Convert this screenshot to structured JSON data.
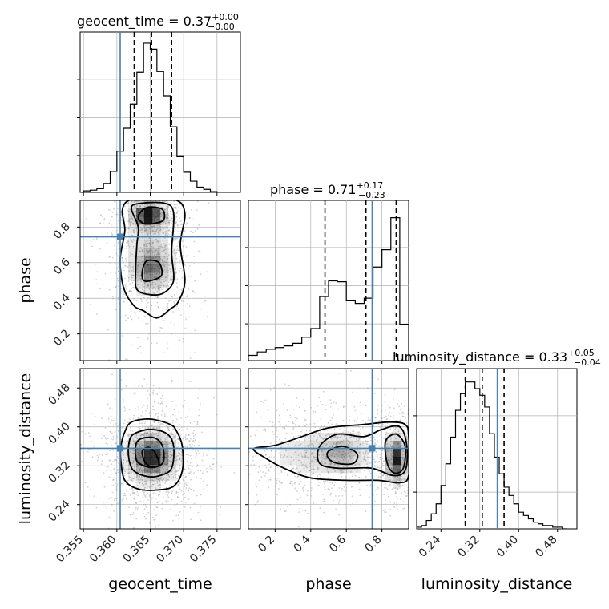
{
  "chart_data": {
    "type": "corner",
    "parameters": [
      "geocent_time",
      "phase",
      "luminosity_distance"
    ],
    "colors": {
      "truth": "#4682b4",
      "hist": "#000000",
      "grid": "#b0b0b0",
      "density": "#000000"
    },
    "truths": {
      "geocent_time": 0.3605,
      "phase": 0.745,
      "luminosity_distance": 0.356
    },
    "ranges": {
      "geocent_time": [
        0.3545,
        0.3785
      ],
      "phase": [
        0.05,
        0.95
      ],
      "luminosity_distance": [
        0.19,
        0.52
      ]
    },
    "ticks": {
      "geocent_time": {
        "values": [
          0.355,
          0.36,
          0.365,
          0.37,
          0.375
        ],
        "labels": [
          "0.355",
          "0.360",
          "0.365",
          "0.370",
          "0.375"
        ]
      },
      "phase": {
        "values": [
          0.2,
          0.4,
          0.6,
          0.8
        ],
        "labels": [
          "0.2",
          "0.4",
          "0.6",
          "0.8"
        ]
      },
      "luminosity_distance": {
        "values": [
          0.24,
          0.32,
          0.4,
          0.48
        ],
        "labels": [
          "0.24",
          "0.32",
          "0.40",
          "0.48"
        ]
      }
    },
    "axis_labels": {
      "geocent_time": "geocent_time",
      "phase": "phase",
      "luminosity_distance": "luminosity_distance"
    },
    "titles": {
      "geocent_time": {
        "prefix": "geocent_time = 0.37",
        "plus": "+0.00",
        "minus": "−0.00"
      },
      "phase": {
        "prefix": "phase = 0.71",
        "plus": "+0.17",
        "minus": "−0.23"
      },
      "luminosity_distance": {
        "prefix": "luminosity_distance = 0.33",
        "plus": "+0.05",
        "minus": "−0.04"
      }
    },
    "quantiles": {
      "geocent_time": [
        0.3626,
        0.3652,
        0.3682
      ],
      "phase": [
        0.48,
        0.71,
        0.88
      ],
      "luminosity_distance": [
        0.29,
        0.325,
        0.37
      ]
    },
    "histograms": {
      "geocent_time": {
        "edges": [
          0.355,
          0.356,
          0.357,
          0.358,
          0.359,
          0.36,
          0.361,
          0.362,
          0.363,
          0.364,
          0.365,
          0.366,
          0.367,
          0.368,
          0.369,
          0.37,
          0.371,
          0.372,
          0.373,
          0.374,
          0.375
        ],
        "counts": [
          2,
          3,
          5,
          12,
          28,
          55,
          86,
          118,
          161,
          200,
          192,
          162,
          129,
          88,
          48,
          27,
          15,
          7,
          4,
          1
        ],
        "ymax": 215
      },
      "phase": {
        "edges": [
          0.05,
          0.1,
          0.15,
          0.2,
          0.25,
          0.3,
          0.35,
          0.4,
          0.45,
          0.5,
          0.55,
          0.6,
          0.65,
          0.7,
          0.75,
          0.8,
          0.85,
          0.9,
          0.95
        ],
        "counts": [
          6,
          10,
          13,
          15,
          17,
          20,
          27,
          37,
          74,
          92,
          91,
          69,
          66,
          72,
          108,
          128,
          165,
          42
        ],
        "ymax": 185
      },
      "luminosity_distance": {
        "edges": [
          0.19,
          0.2,
          0.21,
          0.22,
          0.23,
          0.24,
          0.25,
          0.26,
          0.27,
          0.28,
          0.29,
          0.3,
          0.31,
          0.32,
          0.33,
          0.34,
          0.35,
          0.36,
          0.37,
          0.38,
          0.39,
          0.4,
          0.41,
          0.42,
          0.43,
          0.44,
          0.45,
          0.46,
          0.47,
          0.48,
          0.49,
          0.5
        ],
        "counts": [
          1,
          2,
          5,
          9,
          15,
          26,
          39,
          55,
          71,
          81,
          88,
          88,
          84,
          80,
          73,
          57,
          43,
          33,
          25,
          20,
          15,
          10,
          8,
          6,
          4,
          3,
          2,
          2,
          1,
          1,
          0
        ],
        "ymax": 96
      }
    },
    "contours": {
      "phase_vs_geocent_time": [
        [
          [
            0.3608,
            0.89
          ],
          [
            0.3618,
            0.95
          ],
          [
            0.365,
            0.96
          ],
          [
            0.369,
            0.95
          ],
          [
            0.3702,
            0.87
          ],
          [
            0.3695,
            0.7
          ],
          [
            0.3702,
            0.5
          ],
          [
            0.3692,
            0.38
          ],
          [
            0.368,
            0.34
          ],
          [
            0.366,
            0.29
          ],
          [
            0.364,
            0.33
          ],
          [
            0.3625,
            0.36
          ],
          [
            0.361,
            0.46
          ],
          [
            0.3605,
            0.62
          ],
          [
            0.3612,
            0.78
          ]
        ],
        [
          [
            0.3622,
            0.9
          ],
          [
            0.363,
            0.93
          ],
          [
            0.367,
            0.935
          ],
          [
            0.3685,
            0.88
          ],
          [
            0.3682,
            0.66
          ],
          [
            0.3685,
            0.5
          ],
          [
            0.367,
            0.43
          ],
          [
            0.365,
            0.42
          ],
          [
            0.363,
            0.45
          ],
          [
            0.3628,
            0.55
          ],
          [
            0.363,
            0.7
          ],
          [
            0.3632,
            0.8
          ]
        ],
        [
          [
            0.3632,
            0.86
          ],
          [
            0.3645,
            0.91
          ],
          [
            0.3668,
            0.9
          ],
          [
            0.367,
            0.84
          ],
          [
            0.3655,
            0.82
          ],
          [
            0.364,
            0.82
          ]
        ],
        [
          [
            0.3638,
            0.55
          ],
          [
            0.3645,
            0.61
          ],
          [
            0.3663,
            0.6
          ],
          [
            0.3667,
            0.53
          ],
          [
            0.3652,
            0.5
          ],
          [
            0.364,
            0.5
          ]
        ]
      ],
      "luminosity_distance_vs_geocent_time": [
        [
          [
            0.3606,
            0.36
          ],
          [
            0.3612,
            0.39
          ],
          [
            0.3622,
            0.41
          ],
          [
            0.365,
            0.416
          ],
          [
            0.368,
            0.405
          ],
          [
            0.369,
            0.39
          ],
          [
            0.3698,
            0.36
          ],
          [
            0.3698,
            0.31
          ],
          [
            0.3685,
            0.278
          ],
          [
            0.366,
            0.27
          ],
          [
            0.3632,
            0.272
          ],
          [
            0.3612,
            0.29
          ],
          [
            0.3606,
            0.33
          ]
        ],
        [
          [
            0.3618,
            0.365
          ],
          [
            0.3625,
            0.385
          ],
          [
            0.365,
            0.395
          ],
          [
            0.3675,
            0.386
          ],
          [
            0.3685,
            0.36
          ],
          [
            0.3682,
            0.315
          ],
          [
            0.3665,
            0.3
          ],
          [
            0.3645,
            0.298
          ],
          [
            0.3625,
            0.31
          ],
          [
            0.3618,
            0.335
          ]
        ],
        [
          [
            0.3628,
            0.36
          ],
          [
            0.3635,
            0.375
          ],
          [
            0.3655,
            0.378
          ],
          [
            0.3668,
            0.362
          ],
          [
            0.367,
            0.33
          ],
          [
            0.366,
            0.318
          ],
          [
            0.3645,
            0.318
          ],
          [
            0.363,
            0.33
          ]
        ],
        [
          [
            0.3638,
            0.35
          ],
          [
            0.3648,
            0.358
          ],
          [
            0.3658,
            0.345
          ],
          [
            0.3663,
            0.322
          ],
          [
            0.3652,
            0.318
          ],
          [
            0.3642,
            0.328
          ]
        ]
      ],
      "luminosity_distance_vs_phase": [
        [
          [
            0.08,
            0.355
          ],
          [
            0.2,
            0.362
          ],
          [
            0.35,
            0.38
          ],
          [
            0.5,
            0.398
          ],
          [
            0.7,
            0.405
          ],
          [
            0.84,
            0.41
          ],
          [
            0.93,
            0.405
          ],
          [
            0.95,
            0.38
          ],
          [
            0.95,
            0.3
          ],
          [
            0.9,
            0.285
          ],
          [
            0.78,
            0.29
          ],
          [
            0.6,
            0.29
          ],
          [
            0.4,
            0.295
          ],
          [
            0.25,
            0.315
          ],
          [
            0.15,
            0.335
          ]
        ],
        [
          [
            0.45,
            0.36
          ],
          [
            0.55,
            0.385
          ],
          [
            0.7,
            0.38
          ],
          [
            0.8,
            0.395
          ],
          [
            0.9,
            0.4
          ],
          [
            0.94,
            0.36
          ],
          [
            0.93,
            0.31
          ],
          [
            0.86,
            0.3
          ],
          [
            0.74,
            0.315
          ],
          [
            0.55,
            0.315
          ],
          [
            0.45,
            0.325
          ]
        ],
        [
          [
            0.5,
            0.35
          ],
          [
            0.58,
            0.36
          ],
          [
            0.66,
            0.345
          ],
          [
            0.64,
            0.325
          ],
          [
            0.55,
            0.325
          ],
          [
            0.5,
            0.335
          ]
        ],
        [
          [
            0.82,
            0.37
          ],
          [
            0.88,
            0.385
          ],
          [
            0.93,
            0.36
          ],
          [
            0.92,
            0.315
          ],
          [
            0.87,
            0.305
          ],
          [
            0.83,
            0.325
          ]
        ]
      ]
    },
    "density_peaks": {
      "phase_vs_geocent_time": [
        {
          "x": 0.3647,
          "y": 0.865,
          "sx": 0.0016,
          "sy": 0.04,
          "w": 1.0
        },
        {
          "x": 0.3652,
          "y": 0.56,
          "sx": 0.0017,
          "sy": 0.07,
          "w": 0.6
        },
        {
          "x": 0.365,
          "y": 0.7,
          "sx": 0.0021,
          "sy": 0.16,
          "w": 0.3
        }
      ],
      "luminosity_distance_vs_geocent_time": [
        {
          "x": 0.3652,
          "y": 0.338,
          "sx": 0.0022,
          "sy": 0.03,
          "w": 1.0
        }
      ],
      "luminosity_distance_vs_phase": [
        {
          "x": 0.88,
          "y": 0.335,
          "sx": 0.04,
          "sy": 0.03,
          "w": 1.0
        },
        {
          "x": 0.57,
          "y": 0.345,
          "sx": 0.09,
          "sy": 0.025,
          "w": 0.55
        },
        {
          "x": 0.35,
          "y": 0.345,
          "sx": 0.12,
          "sy": 0.03,
          "w": 0.2
        }
      ]
    },
    "markers": [
      {
        "panel": "phase_vs_geocent_time",
        "x": 0.3605,
        "y": 0.745
      },
      {
        "panel": "luminosity_distance_vs_geocent_time",
        "x": 0.3605,
        "y": 0.356
      },
      {
        "panel": "luminosity_distance_vs_phase",
        "x": 0.745,
        "y": 0.356
      }
    ]
  }
}
